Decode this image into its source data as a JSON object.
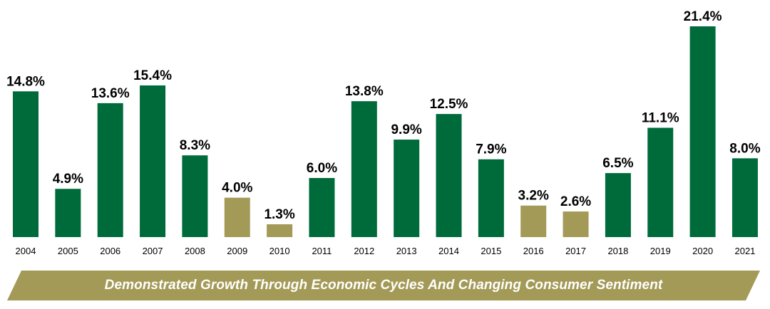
{
  "chart_data": {
    "type": "bar",
    "categories": [
      "2004",
      "2005",
      "2006",
      "2007",
      "2008",
      "2009",
      "2010",
      "2011",
      "2012",
      "2013",
      "2014",
      "2015",
      "2016",
      "2017",
      "2018",
      "2019",
      "2020",
      "2021"
    ],
    "values": [
      14.8,
      4.9,
      13.6,
      15.4,
      8.3,
      4.0,
      1.3,
      6.0,
      13.8,
      9.9,
      12.5,
      7.9,
      3.2,
      2.6,
      6.5,
      11.1,
      21.4,
      8.0
    ],
    "value_labels": [
      "14.8%",
      "4.9%",
      "13.6%",
      "15.4%",
      "8.3%",
      "4.0%",
      "1.3%",
      "6.0%",
      "13.8%",
      "9.9%",
      "12.5%",
      "7.9%",
      "3.2%",
      "2.6%",
      "6.5%",
      "11.1%",
      "21.4%",
      "8.0%"
    ],
    "highlight": [
      false,
      false,
      false,
      false,
      false,
      true,
      true,
      false,
      false,
      false,
      false,
      false,
      true,
      true,
      false,
      false,
      false,
      false
    ],
    "colors": {
      "bar": "#006b3a",
      "bar_highlight": "#a39a57",
      "label": "#000000"
    },
    "ylim": [
      0,
      21.4
    ],
    "grid": false,
    "legend": "none"
  },
  "banner": {
    "text": "Demonstrated Growth Through Economic Cycles And Changing Consumer Sentiment",
    "color": "#a39a57"
  }
}
